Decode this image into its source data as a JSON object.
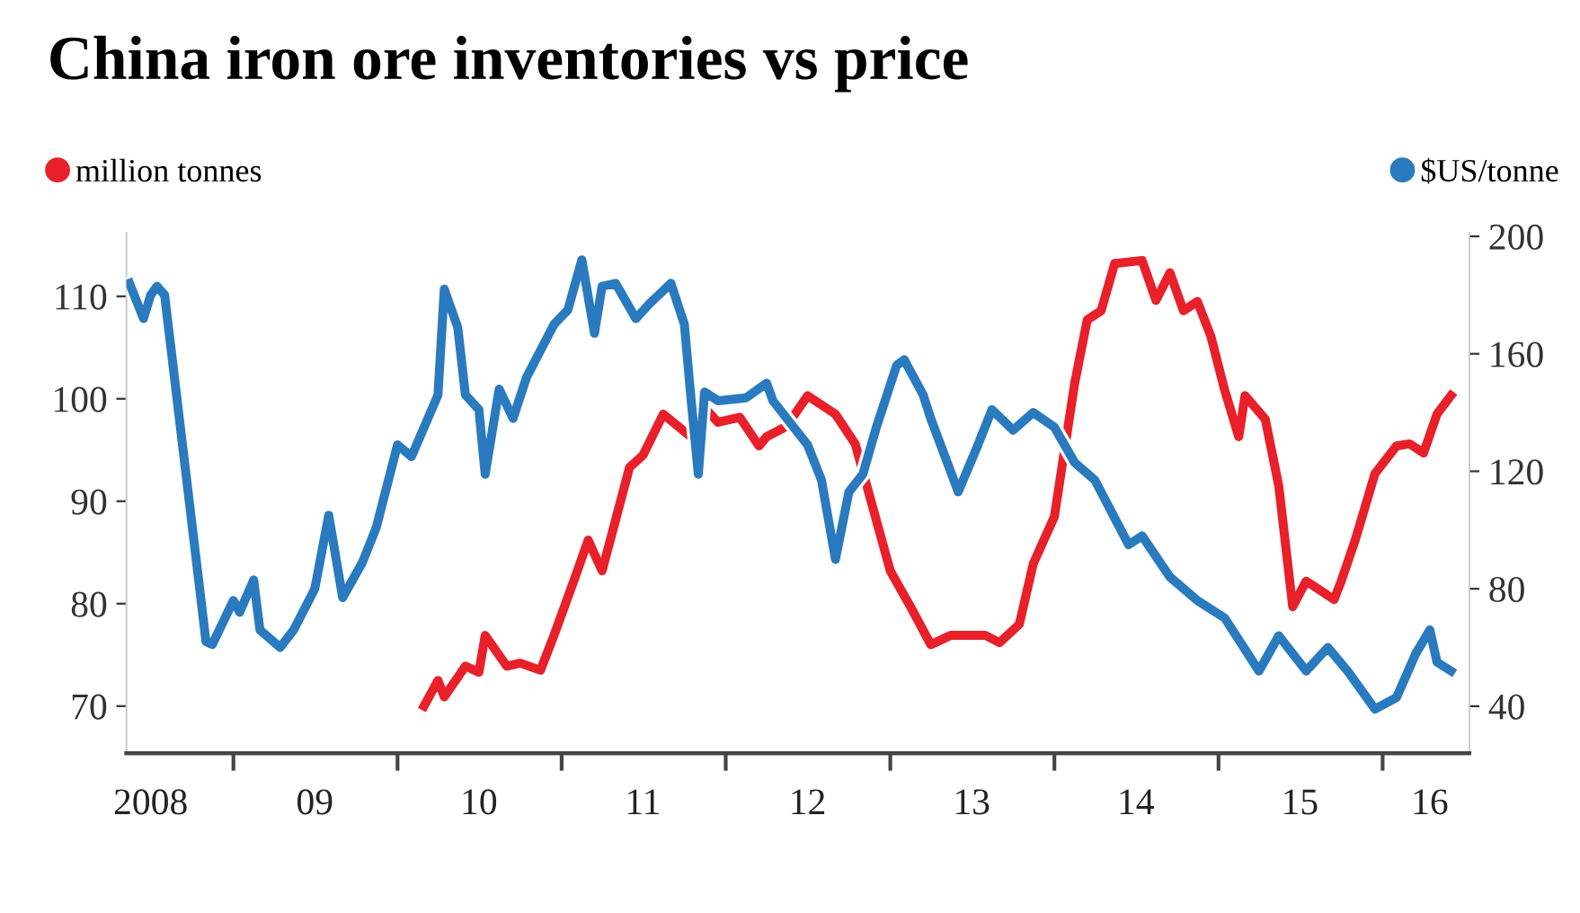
{
  "chart_data": {
    "type": "line",
    "title": "China iron ore inventories vs price",
    "series": [
      {
        "name": "million tonnes",
        "color": "#e8202a",
        "axis": "y",
        "x": [
          "2010-03-01",
          "2010-04-01",
          "2010-04-15",
          "2010-06-01",
          "2010-07-01",
          "2010-07-15",
          "2010-09-01",
          "2010-10-01",
          "2010-11-15",
          "2010-12-15",
          "2011-02-01",
          "2011-03-01",
          "2011-04-01",
          "2011-06-01",
          "2011-07-01",
          "2011-08-15",
          "2011-10-15",
          "2011-11-15",
          "2011-12-15",
          "2012-02-01",
          "2012-03-15",
          "2012-04-01",
          "2012-05-15",
          "2012-07-01",
          "2012-09-01",
          "2012-10-15",
          "2013-01-01",
          "2013-02-15",
          "2013-04-01",
          "2013-05-15",
          "2013-08-01",
          "2013-09-01",
          "2013-10-15",
          "2013-11-15",
          "2014-01-01",
          "2014-02-15",
          "2014-03-15",
          "2014-04-15",
          "2014-05-15",
          "2014-07-15",
          "2014-08-15",
          "2014-09-15",
          "2014-10-15",
          "2014-11-15",
          "2014-12-15",
          "2015-01-15",
          "2015-02-15",
          "2015-03-01",
          "2015-04-15",
          "2015-05-15",
          "2015-06-15",
          "2015-07-15",
          "2015-09-15",
          "2015-10-01",
          "2015-11-01",
          "2015-12-15",
          "2016-02-01",
          "2016-03-01",
          "2016-04-01",
          "2016-05-01",
          "2016-06-01"
        ],
        "values": [
          70.0,
          72.5,
          70.9,
          73.9,
          73.3,
          76.9,
          73.9,
          74.2,
          73.5,
          76.9,
          82.7,
          86.2,
          83.2,
          93.3,
          94.5,
          98.5,
          96.3,
          99.1,
          97.7,
          98.2,
          95.4,
          96.3,
          97.3,
          100.3,
          98.5,
          95.6,
          83.2,
          79.7,
          76.0,
          76.9,
          76.9,
          76.2,
          78.0,
          83.9,
          88.5,
          101.5,
          107.7,
          108.6,
          113.2,
          113.5,
          109.6,
          112.3,
          108.6,
          109.5,
          106.1,
          100.8,
          96.3,
          100.3,
          98.0,
          91.5,
          79.7,
          82.2,
          80.4,
          82.2,
          86.2,
          92.7,
          95.4,
          95.6,
          94.7,
          98.5,
          100.3
        ]
      },
      {
        "name": "$US/tonne",
        "color": "#2a7abf",
        "axis": "y2",
        "x": [
          "2008-05-15",
          "2008-06-15",
          "2008-07-01",
          "2008-07-15",
          "2008-08-01",
          "2008-11-01",
          "2008-11-15",
          "2009-01-01",
          "2009-01-15",
          "2009-02-15",
          "2009-03-01",
          "2009-04-15",
          "2009-05-15",
          "2009-07-01",
          "2009-08-01",
          "2009-09-01",
          "2009-10-15",
          "2009-11-15",
          "2010-01-01",
          "2010-02-01",
          "2010-04-01",
          "2010-04-15",
          "2010-05-15",
          "2010-06-01",
          "2010-07-01",
          "2010-07-15",
          "2010-08-15",
          "2010-09-15",
          "2010-10-15",
          "2010-12-15",
          "2011-01-15",
          "2011-02-15",
          "2011-03-15",
          "2011-04-01",
          "2011-05-01",
          "2011-06-15",
          "2011-07-15",
          "2011-09-01",
          "2011-10-01",
          "2011-10-15",
          "2011-11-01",
          "2011-11-15",
          "2011-12-15",
          "2012-02-15",
          "2012-04-01",
          "2012-04-15",
          "2012-07-01",
          "2012-08-01",
          "2012-09-01",
          "2012-10-01",
          "2012-11-01",
          "2012-12-01",
          "2013-01-15",
          "2013-02-01",
          "2013-03-15",
          "2013-04-01",
          "2013-06-01",
          "2013-07-15",
          "2013-08-15",
          "2013-10-01",
          "2013-11-15",
          "2014-01-01",
          "2014-02-15",
          "2014-04-01",
          "2014-06-15",
          "2014-07-15",
          "2014-09-15",
          "2014-11-15",
          "2015-01-15",
          "2015-04-01",
          "2015-05-15",
          "2015-07-15",
          "2015-09-01",
          "2015-10-15",
          "2015-12-15",
          "2016-02-01",
          "2016-03-15",
          "2016-04-15",
          "2016-05-01",
          "2016-06-01"
        ],
        "values": [
          184,
          172,
          180,
          183,
          180,
          62,
          61,
          76,
          72,
          83,
          66,
          60,
          66,
          80,
          105,
          77,
          89,
          101,
          129,
          125,
          146,
          182,
          169,
          146,
          141,
          119,
          148,
          138,
          152,
          170,
          175,
          192,
          167,
          183,
          184,
          172,
          177,
          184,
          170,
          146,
          119,
          147,
          144,
          145,
          150,
          144,
          129,
          117,
          90,
          113,
          119,
          135,
          156,
          158,
          146,
          138,
          113,
          129,
          141,
          134,
          140,
          135,
          123,
          117,
          95,
          98,
          84,
          76,
          70,
          52,
          64,
          52,
          60,
          52,
          39,
          43,
          58,
          66,
          55,
          52
        ]
      }
    ],
    "xlim": [
      "2008-05-08",
      "2016-07-12"
    ],
    "xticks": [
      {
        "value": "2008-07-01",
        "label": "2008"
      },
      {
        "value": "2009-01-01",
        "label": null
      },
      {
        "value": "2009-07-01",
        "label": "09"
      },
      {
        "value": "2010-01-01",
        "label": null
      },
      {
        "value": "2010-07-01",
        "label": "10"
      },
      {
        "value": "2011-01-01",
        "label": null
      },
      {
        "value": "2011-07-01",
        "label": "11"
      },
      {
        "value": "2012-01-01",
        "label": null
      },
      {
        "value": "2012-07-01",
        "label": "12"
      },
      {
        "value": "2013-01-01",
        "label": null
      },
      {
        "value": "2013-07-01",
        "label": "13"
      },
      {
        "value": "2014-01-01",
        "label": null
      },
      {
        "value": "2014-07-01",
        "label": "14"
      },
      {
        "value": "2015-01-01",
        "label": null
      },
      {
        "value": "2015-07-01",
        "label": "15"
      },
      {
        "value": "2016-01-01",
        "label": null
      },
      {
        "value": "2016-04-15",
        "label": "16"
      }
    ],
    "ylim": [
      65.4,
      116.2
    ],
    "yticks": [
      70,
      80,
      90,
      100,
      110
    ],
    "y2lim": [
      24,
      201.2
    ],
    "y2ticks": [
      40,
      80,
      120,
      160,
      200
    ],
    "grid": false,
    "legend": "top",
    "marker": "none",
    "line_style": "solid"
  }
}
